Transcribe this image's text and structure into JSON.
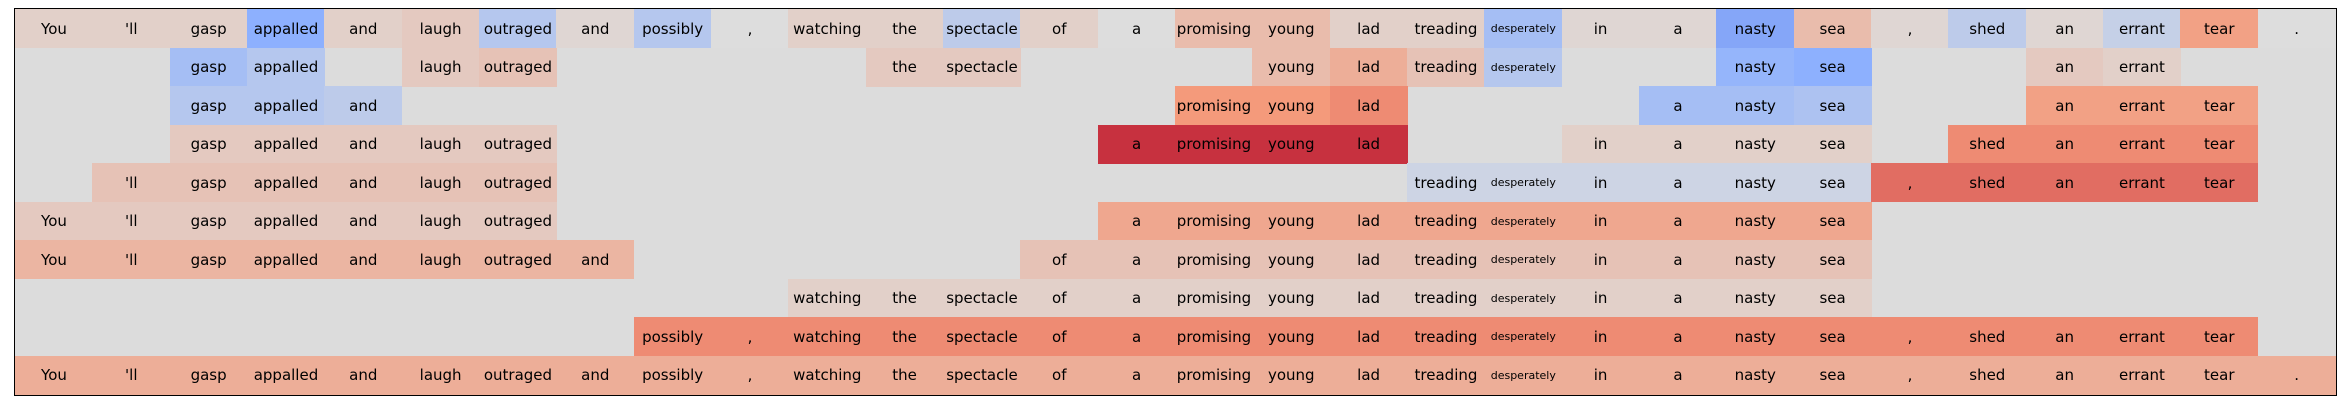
{
  "chart_data": {
    "type": "heatmap",
    "columns": [
      "You",
      "'ll",
      "gasp",
      "appalled",
      "and",
      "laugh",
      "outraged",
      "and",
      "possibly",
      ",",
      "watching",
      "the",
      "spectacle",
      "of",
      "a",
      "promising",
      "young",
      "lad",
      "treading",
      "desperately",
      "in",
      "a",
      "nasty",
      "sea",
      ",",
      "shed",
      "an",
      "errant",
      "tear",
      "."
    ],
    "small_text_columns": [
      19
    ],
    "background_color": "#dcdcdc",
    "colormap": "coolwarm",
    "value_range": [
      -1,
      1
    ],
    "rows": [
      {
        "visible": [
          1,
          1,
          1,
          1,
          1,
          1,
          1,
          1,
          1,
          1,
          1,
          1,
          1,
          1,
          1,
          1,
          1,
          1,
          1,
          1,
          1,
          1,
          1,
          1,
          1,
          1,
          1,
          1,
          1,
          1
        ],
        "values": [
          0.1,
          0.1,
          0.1,
          -0.5,
          0.1,
          0.15,
          -0.25,
          0.05,
          -0.25,
          0.0,
          0.1,
          0.1,
          -0.2,
          0.1,
          0.0,
          0.25,
          0.25,
          0.1,
          0.1,
          -0.35,
          0.05,
          0.05,
          -0.55,
          0.25,
          0.05,
          -0.2,
          0.05,
          -0.15,
          0.45,
          0.0
        ]
      },
      {
        "visible": [
          0,
          0,
          1,
          1,
          0,
          1,
          1,
          0,
          0,
          0,
          0,
          1,
          1,
          0,
          0,
          0,
          1,
          1,
          1,
          1,
          0,
          0,
          1,
          1,
          0,
          0,
          1,
          1,
          0,
          0
        ],
        "values": [
          0,
          0,
          -0.35,
          -0.25,
          0,
          0.15,
          0.2,
          0,
          0,
          0,
          0,
          0.15,
          0.15,
          0,
          0,
          0,
          0.25,
          0.35,
          0.2,
          -0.25,
          0,
          0,
          -0.45,
          -0.5,
          0,
          0,
          0.15,
          0.1,
          0,
          0
        ]
      },
      {
        "visible": [
          0,
          0,
          1,
          1,
          1,
          0,
          0,
          0,
          0,
          0,
          0,
          0,
          0,
          0,
          0,
          1,
          1,
          1,
          0,
          0,
          0,
          1,
          1,
          1,
          0,
          0,
          1,
          1,
          1,
          0
        ],
        "values": [
          0,
          0,
          -0.25,
          -0.25,
          -0.2,
          0,
          0,
          0,
          0,
          0,
          0,
          0,
          0,
          0,
          0,
          0.5,
          0.5,
          0.55,
          0,
          0,
          0,
          -0.35,
          -0.35,
          -0.3,
          0,
          0,
          0.45,
          0.45,
          0.45,
          0
        ]
      },
      {
        "visible": [
          0,
          0,
          1,
          1,
          1,
          1,
          1,
          0,
          0,
          0,
          0,
          0,
          0,
          0,
          1,
          1,
          1,
          1,
          0,
          0,
          1,
          1,
          1,
          1,
          0,
          1,
          1,
          1,
          1,
          0
        ],
        "values": [
          0,
          0,
          0.15,
          0.15,
          0.15,
          0.15,
          0.15,
          0,
          0,
          0,
          0,
          0,
          0,
          0,
          0.85,
          0.85,
          0.85,
          0.85,
          0,
          0,
          0.1,
          0.1,
          0.1,
          0.1,
          0,
          0.55,
          0.55,
          0.55,
          0.55,
          0
        ]
      },
      {
        "visible": [
          0,
          1,
          1,
          1,
          1,
          1,
          1,
          0,
          0,
          0,
          0,
          0,
          0,
          0,
          0,
          0,
          0,
          0,
          1,
          1,
          1,
          1,
          1,
          1,
          1,
          1,
          1,
          1,
          1,
          0
        ],
        "values": [
          0,
          0.2,
          0.2,
          0.2,
          0.2,
          0.2,
          0.2,
          0,
          0,
          0,
          0,
          0,
          0,
          0,
          0,
          0,
          0,
          0,
          -0.1,
          -0.1,
          -0.1,
          -0.1,
          -0.1,
          -0.1,
          0.65,
          0.65,
          0.65,
          0.65,
          0.65,
          0
        ]
      },
      {
        "visible": [
          1,
          1,
          1,
          1,
          1,
          1,
          1,
          0,
          0,
          0,
          0,
          0,
          0,
          0,
          1,
          1,
          1,
          1,
          1,
          1,
          1,
          1,
          1,
          1,
          0,
          0,
          0,
          0,
          0,
          0
        ],
        "values": [
          0.15,
          0.15,
          0.15,
          0.15,
          0.15,
          0.15,
          0.15,
          0,
          0,
          0,
          0,
          0,
          0,
          0,
          0.4,
          0.4,
          0.4,
          0.4,
          0.4,
          0.4,
          0.4,
          0.4,
          0.4,
          0.4,
          0,
          0,
          0,
          0,
          0,
          0
        ]
      },
      {
        "visible": [
          1,
          1,
          1,
          1,
          1,
          1,
          1,
          1,
          0,
          0,
          0,
          0,
          0,
          1,
          1,
          1,
          1,
          1,
          1,
          1,
          1,
          1,
          1,
          1,
          0,
          0,
          0,
          0,
          0,
          0
        ],
        "values": [
          0.3,
          0.3,
          0.3,
          0.3,
          0.3,
          0.3,
          0.3,
          0.3,
          0,
          0,
          0,
          0,
          0,
          0.2,
          0.2,
          0.2,
          0.2,
          0.2,
          0.2,
          0.2,
          0.2,
          0.2,
          0.2,
          0.2,
          0,
          0,
          0,
          0,
          0,
          0
        ]
      },
      {
        "visible": [
          0,
          0,
          0,
          0,
          0,
          0,
          0,
          0,
          0,
          0,
          1,
          1,
          1,
          1,
          1,
          1,
          1,
          1,
          1,
          1,
          1,
          1,
          1,
          1,
          0,
          0,
          0,
          0,
          0,
          0
        ],
        "values": [
          0,
          0,
          0,
          0,
          0,
          0,
          0,
          0,
          0,
          0,
          0.1,
          0.1,
          0.1,
          0.1,
          0.1,
          0.1,
          0.1,
          0.1,
          0.1,
          0.1,
          0.1,
          0.1,
          0.1,
          0.1,
          0,
          0,
          0,
          0,
          0,
          0
        ]
      },
      {
        "visible": [
          0,
          0,
          0,
          0,
          0,
          0,
          0,
          0,
          1,
          1,
          1,
          1,
          1,
          1,
          1,
          1,
          1,
          1,
          1,
          1,
          1,
          1,
          1,
          1,
          1,
          1,
          1,
          1,
          1,
          0
        ],
        "values": [
          0,
          0,
          0,
          0,
          0,
          0,
          0,
          0,
          0.55,
          0.55,
          0.55,
          0.55,
          0.55,
          0.55,
          0.55,
          0.55,
          0.55,
          0.55,
          0.55,
          0.55,
          0.55,
          0.55,
          0.55,
          0.55,
          0.55,
          0.55,
          0.55,
          0.55,
          0.55,
          0
        ]
      },
      {
        "visible": [
          1,
          1,
          1,
          1,
          1,
          1,
          1,
          1,
          1,
          1,
          1,
          1,
          1,
          1,
          1,
          1,
          1,
          1,
          1,
          1,
          1,
          1,
          1,
          1,
          1,
          1,
          1,
          1,
          1,
          1
        ],
        "values": [
          0.35,
          0.35,
          0.35,
          0.35,
          0.35,
          0.35,
          0.35,
          0.35,
          0.35,
          0.35,
          0.35,
          0.35,
          0.35,
          0.35,
          0.35,
          0.35,
          0.35,
          0.35,
          0.35,
          0.35,
          0.35,
          0.35,
          0.35,
          0.35,
          0.35,
          0.35,
          0.35,
          0.35,
          0.35,
          0.35
        ]
      }
    ]
  }
}
